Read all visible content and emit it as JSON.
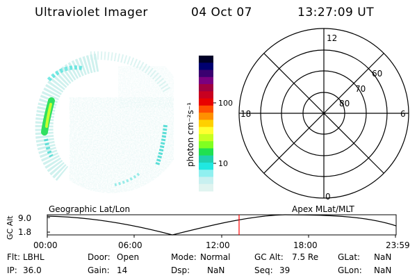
{
  "header": {
    "title": "Ultraviolet Imager",
    "date": "04 Oct 07",
    "time": "13:27:09 UT"
  },
  "colorbar": {
    "unit_label": "photon cm⁻²s⁻¹",
    "tick_labels": [
      "100",
      "10"
    ],
    "colors": [
      "#000028",
      "#000070",
      "#3a0070",
      "#7a0080",
      "#a00040",
      "#c80020",
      "#e80000",
      "#ff5000",
      "#ff9000",
      "#ffd000",
      "#ffff30",
      "#c8ff20",
      "#80ff20",
      "#20e050",
      "#20d0b0",
      "#20e8e0",
      "#90f0f0",
      "#c8f0f0",
      "#e0f4f0"
    ]
  },
  "polar_plot": {
    "mlt_labels": [
      "12",
      "18",
      "6",
      "0"
    ],
    "lat_labels": [
      "60",
      "70",
      "80"
    ]
  },
  "timeline": {
    "left_label": "Geographic Lat/Lon",
    "right_label": "Apex MLat/MLT",
    "axis_label": "GC Alt",
    "y_ticks": [
      "9.0",
      "1.8"
    ],
    "x_ticks": [
      "00:00",
      "06:00",
      "12:00",
      "18:00",
      "23:59"
    ],
    "marker_color": "#ff0000"
  },
  "info": {
    "filter_label": "Flt:",
    "filter_value": "LBHL",
    "ip_label": "IP:",
    "ip_value": "36.0",
    "door_label": "Door:",
    "door_value": "Open",
    "gain_label": "Gain:",
    "gain_value": "14",
    "mode_label": "Mode:",
    "mode_value": "Normal",
    "dsp_label": "Dsp:",
    "dsp_value": "NaN",
    "gcalt_label": "GC Alt:",
    "gcalt_value": "7.5 Re",
    "seq_label": "Seq:",
    "seq_value": "39",
    "glat_label": "GLat:",
    "glat_value": "NaN",
    "glon_label": "GLon:",
    "glon_value": "NaN"
  }
}
